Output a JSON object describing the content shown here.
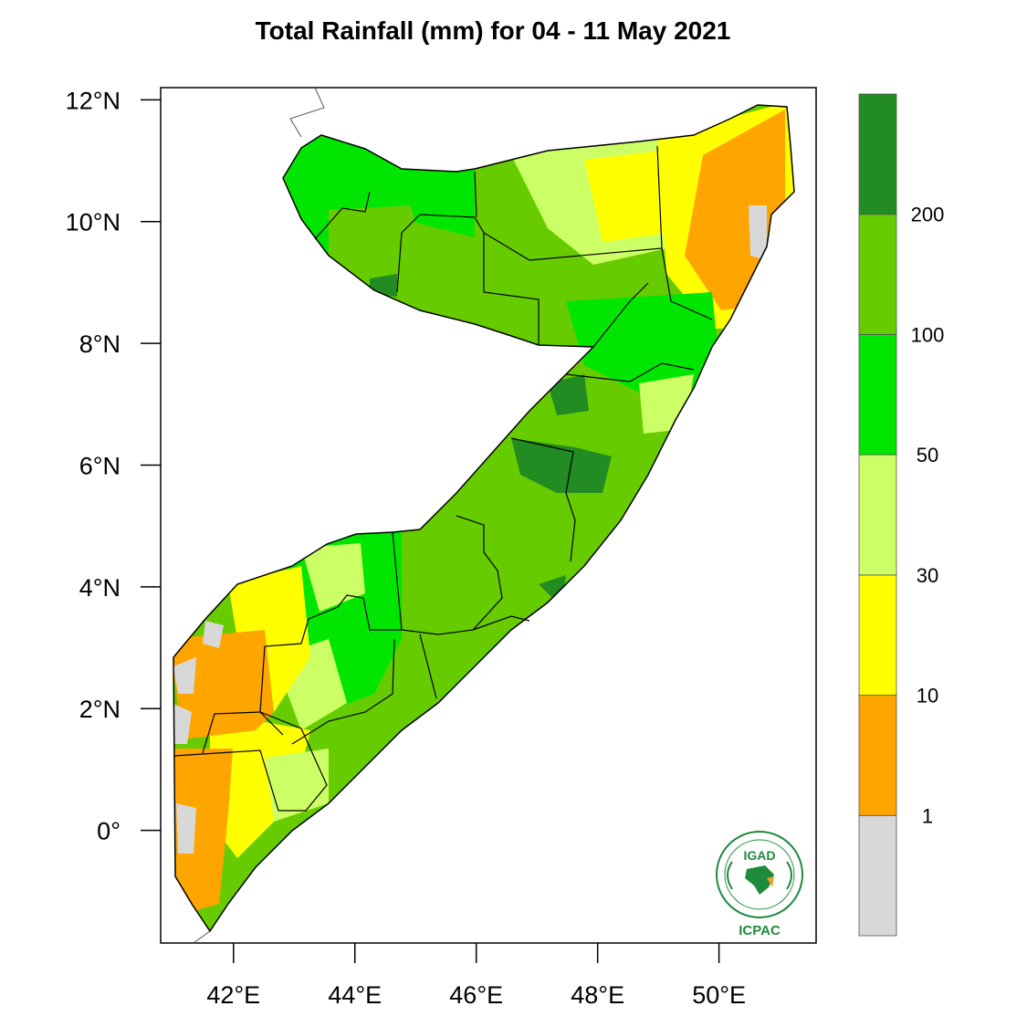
{
  "title": "Total Rainfall (mm) for 04 - 11 May 2021",
  "map": {
    "region": "Somalia",
    "lon_range": [
      40.8,
      51.6
    ],
    "lat_range": [
      -1.85,
      12.2
    ],
    "lat_ticks": [
      {
        "value": 12,
        "label": "12°N"
      },
      {
        "value": 10,
        "label": "10°N"
      },
      {
        "value": 8,
        "label": "8°N"
      },
      {
        "value": 6,
        "label": "6°N"
      },
      {
        "value": 4,
        "label": "4°N"
      },
      {
        "value": 2,
        "label": "2°N"
      },
      {
        "value": 0,
        "label": "0°"
      }
    ],
    "lon_ticks": [
      {
        "value": 42,
        "label": "42°E"
      },
      {
        "value": 44,
        "label": "44°E"
      },
      {
        "value": 46,
        "label": "46°E"
      },
      {
        "value": 48,
        "label": "48°E"
      },
      {
        "value": 50,
        "label": "50°E"
      }
    ]
  },
  "colorbar": {
    "levels": [
      "1",
      "10",
      "30",
      "50",
      "100",
      "200"
    ],
    "colors": [
      "#d8d8d8",
      "#ffa500",
      "#ffff00",
      "#ccff66",
      "#00e600",
      "#66cc00",
      "#228b22"
    ]
  },
  "logo": {
    "top_text": "IGAD",
    "bottom_text": "ICPAC"
  }
}
